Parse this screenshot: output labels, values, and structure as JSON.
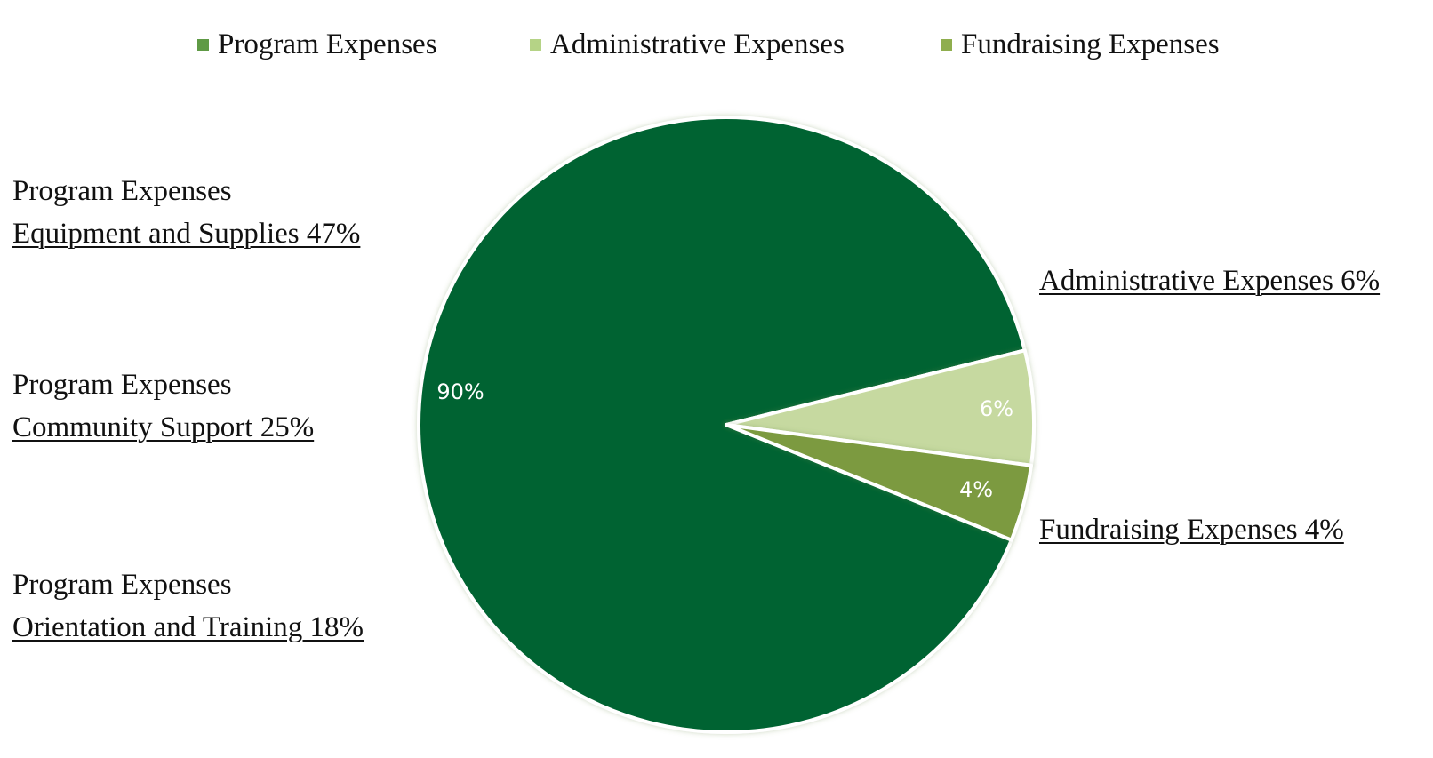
{
  "chart_data": {
    "type": "pie",
    "legend": {
      "placement": "top",
      "entries": [
        "Program Expenses",
        "Administrative Expenses",
        "Fundraising Expenses"
      ]
    },
    "slices": [
      {
        "label": "Program Expenses",
        "value": 90,
        "data_label": "90%",
        "color": "#036330"
      },
      {
        "label": "Administrative Expenses",
        "value": 6,
        "data_label": "6%",
        "color": "#c6d9a0"
      },
      {
        "label": "Fundraising Expenses",
        "value": 4,
        "data_label": "4%",
        "color": "#7c9a40"
      }
    ],
    "legend_colors": [
      "#5f9a45",
      "#b5d386",
      "#8fae4e"
    ],
    "annotations": {
      "equipment": {
        "line1": "Program Expenses",
        "line2": "Equipment and Supplies 47%"
      },
      "community": {
        "line1": "Program Expenses",
        "line2": "Community Support 25%"
      },
      "orientation": {
        "line1": "Program Expenses",
        "line2": "Orientation and Training 18%"
      },
      "admin": {
        "line1": "Administrative Expenses 6%"
      },
      "fund": {
        "line1": "Fundraising Expenses 4%"
      }
    }
  }
}
